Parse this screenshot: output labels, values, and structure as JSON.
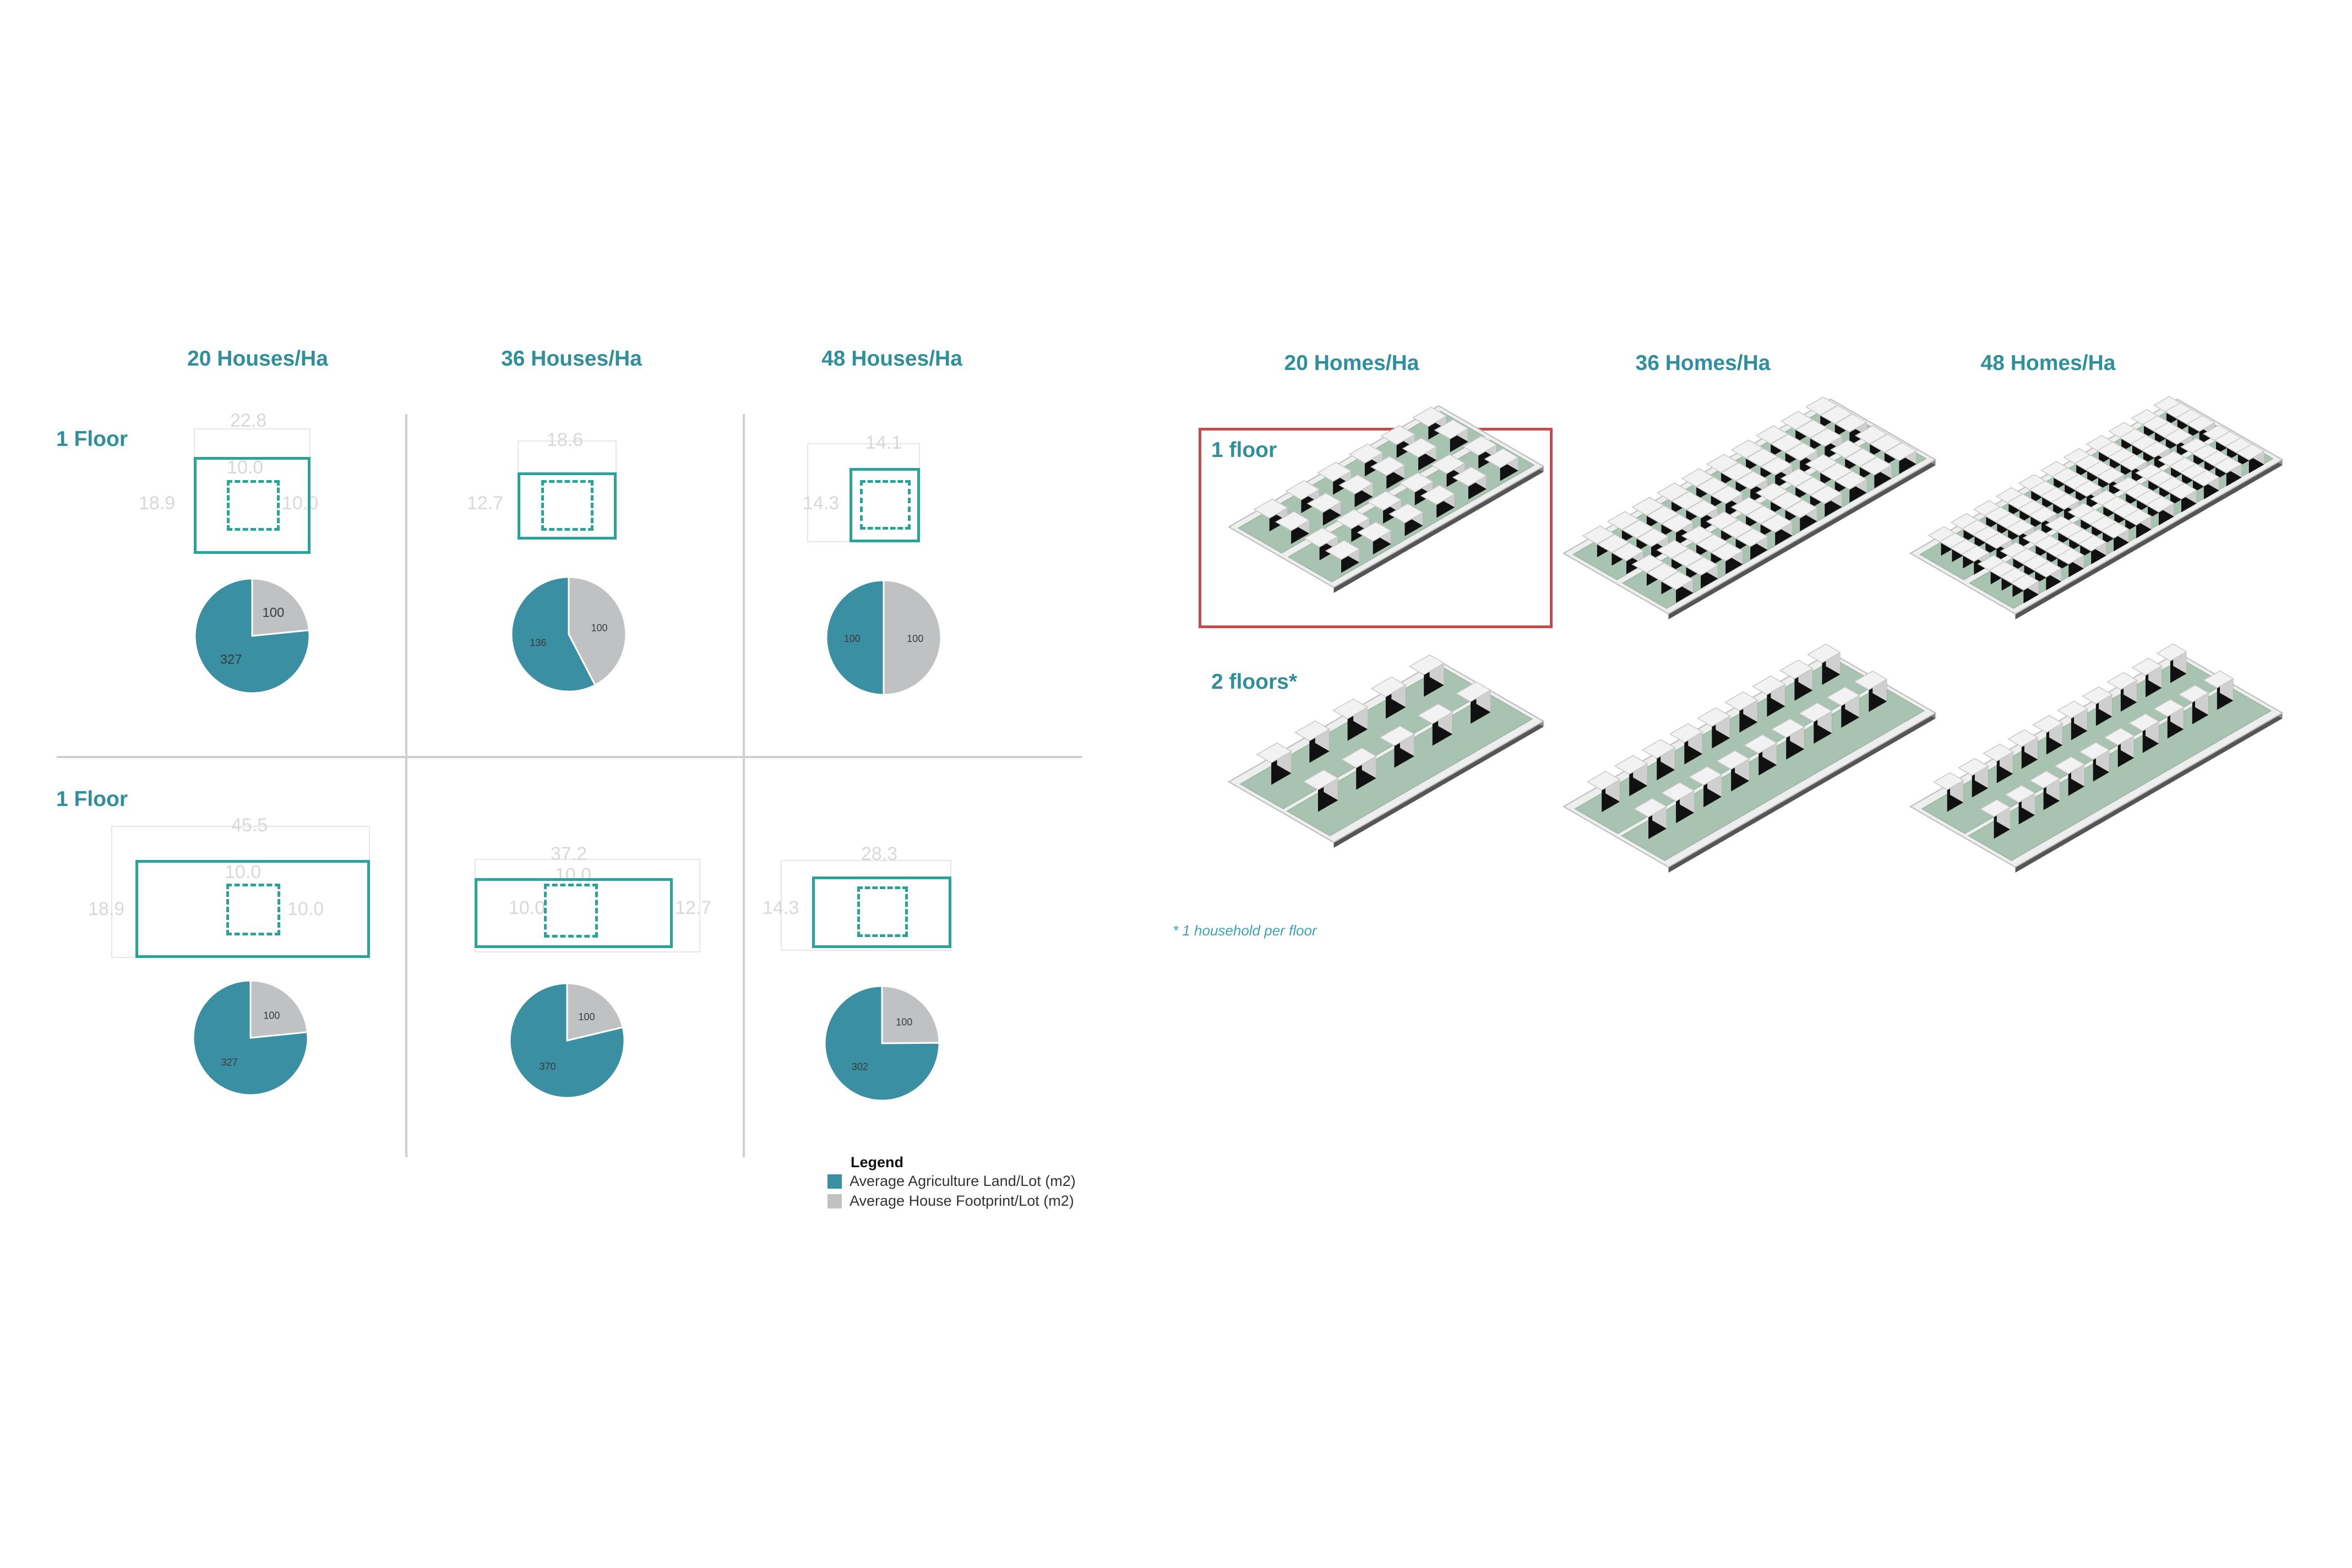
{
  "colors": {
    "accent": "#2f8f9c",
    "agri": "#3a8fa2",
    "house": "#bfc1c3",
    "lot_outline": "#2aa39a",
    "highlight": "#c94a4a",
    "ground": "#a9c3b3"
  },
  "left": {
    "columns": [
      "20 Houses/Ha",
      "36 Houses/Ha",
      "48 Houses/Ha"
    ],
    "rows": [
      "1 Floor",
      "1 Floor"
    ],
    "cells": [
      {
        "dims": [
          "22.8",
          "18.9",
          "10.0",
          "10.0"
        ],
        "pie": {
          "agri": 327,
          "house": 100
        }
      },
      {
        "dims": [
          "18.6",
          "12.7"
        ],
        "pie": {
          "agri": 136,
          "house": 100
        }
      },
      {
        "dims": [
          "14.1",
          "14.3"
        ],
        "pie": {
          "agri": 100,
          "house": 100
        }
      },
      {
        "dims": [
          "45.5",
          "18.9",
          "10.0",
          "10.0"
        ],
        "pie": {
          "agri": 327,
          "house": 100
        }
      },
      {
        "dims": [
          "37.2",
          "10.0",
          "10.0",
          "12.7"
        ],
        "pie": {
          "agri": 370,
          "house": 100
        }
      },
      {
        "dims": [
          "28.3",
          "14.3"
        ],
        "pie": {
          "agri": 302,
          "house": 100
        }
      }
    ],
    "legend": {
      "title": "Legend",
      "items": [
        "Average Agriculture Land/Lot (m2)",
        "Average House Footprint/Lot (m2)"
      ]
    }
  },
  "right": {
    "columns": [
      "20 Homes/Ha",
      "36 Homes/Ha",
      "48 Homes/Ha"
    ],
    "rows": [
      "1 floor",
      "2 floors*"
    ],
    "footnote": "* 1 household per floor"
  }
}
